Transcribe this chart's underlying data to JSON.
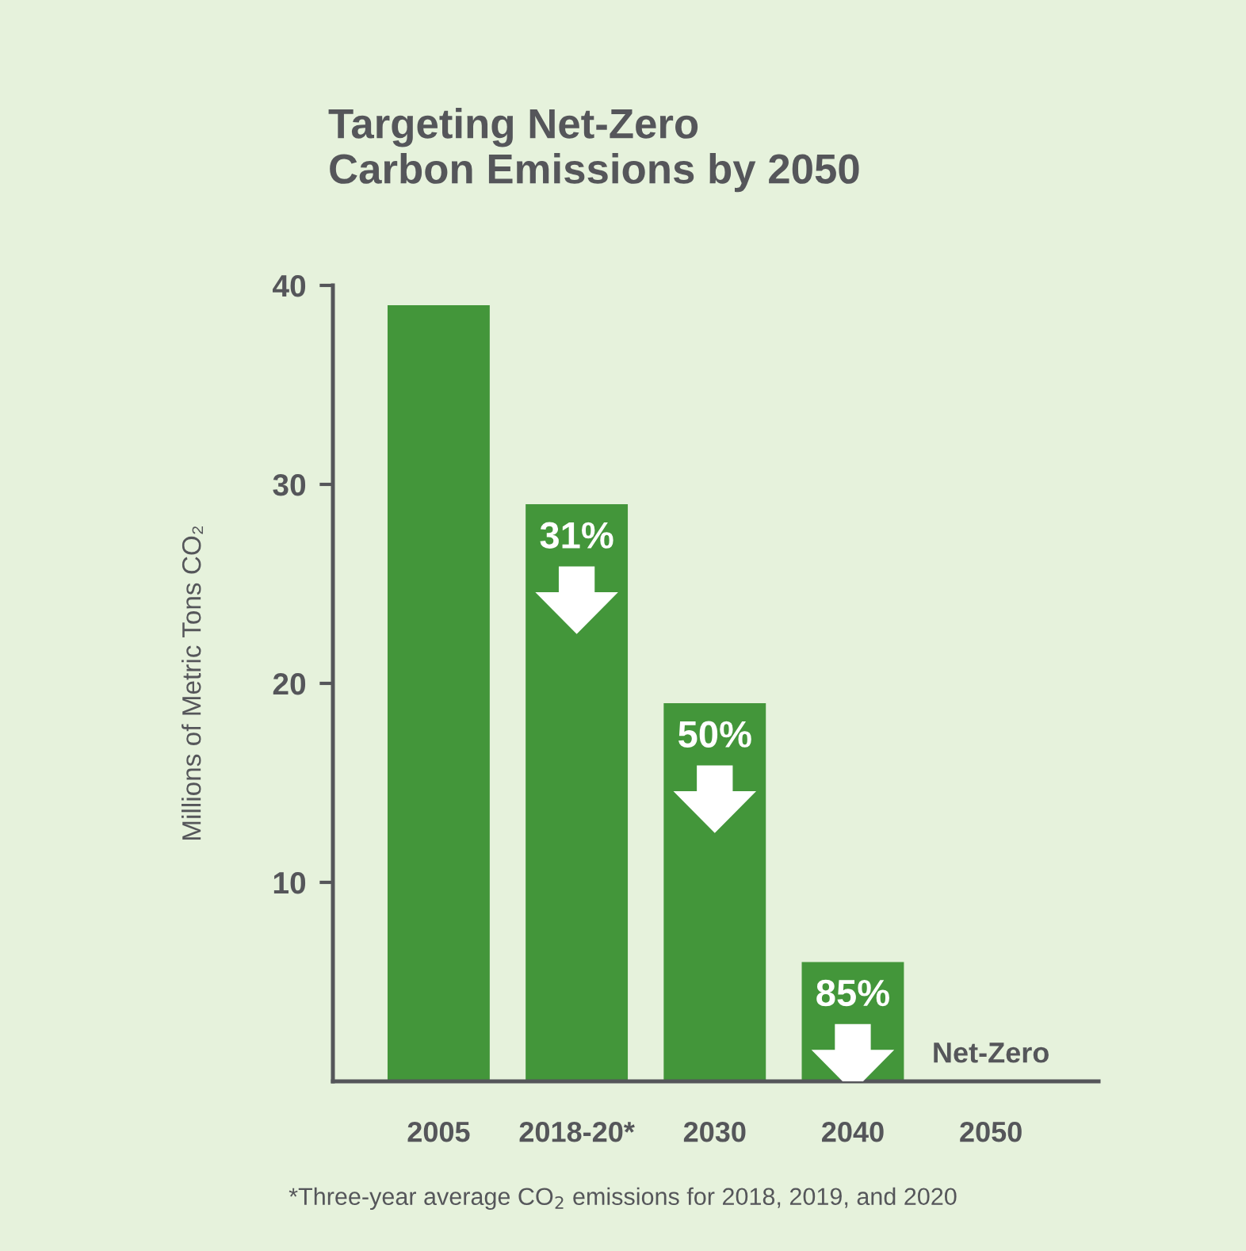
{
  "chart_data": {
    "type": "bar",
    "title": "Targeting Net-Zero\nCarbon Emissions by 2050",
    "ylabel": "Millions of Metric Tons CO₂",
    "categories": [
      "2005",
      "2018-20*",
      "2030",
      "2040",
      "2050"
    ],
    "values": [
      39,
      29,
      19,
      6,
      0
    ],
    "color": "#43963a",
    "ylim": [
      0,
      40
    ],
    "yticks": [
      10,
      20,
      30,
      40
    ],
    "grid": false,
    "annotations": [
      "31%",
      "50%",
      "85%",
      "Net-Zero",
      "*Three-year average CO$_{2}$ emissions for 2018, 2019, and 2020"
    ]
  }
}
